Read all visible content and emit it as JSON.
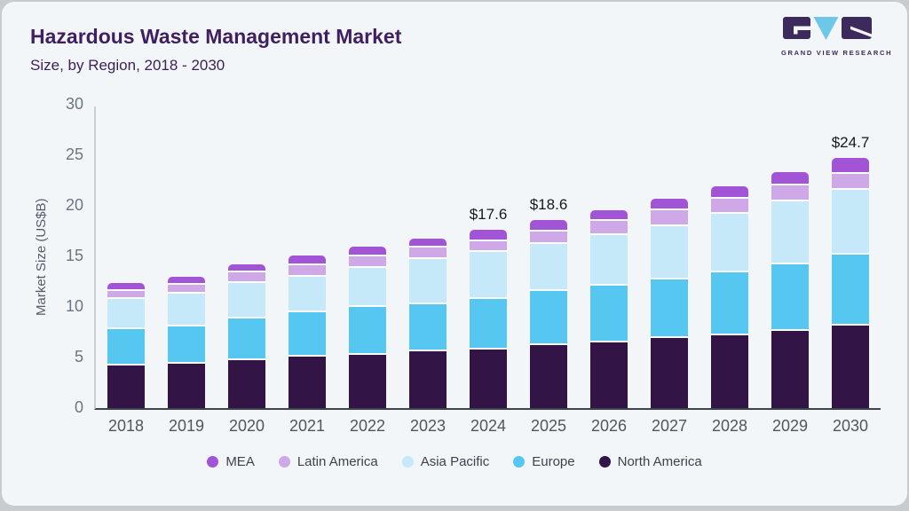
{
  "page": {
    "background": "#c7ccd0",
    "card_background": "#f2f6f9"
  },
  "header": {
    "title": "Hazardous Waste Management Market",
    "subtitle": "Size, by Region, 2018 - 2030",
    "title_color": "#401f61"
  },
  "logo": {
    "caption": "GRAND VIEW RESEARCH",
    "dark_color": "#3c2a5c",
    "accent_color": "#6ec6e9"
  },
  "chart_data": {
    "type": "bar",
    "stacked": true,
    "title": "Hazardous Waste Management Market Size, by Region, 2018 - 2030",
    "xlabel": "",
    "ylabel": "Market Size (US$B)",
    "ylim": [
      0,
      30
    ],
    "yticks": [
      0,
      5,
      10,
      15,
      20,
      25,
      30
    ],
    "grid": false,
    "legend_position": "bottom",
    "categories": [
      "2018",
      "2019",
      "2020",
      "2021",
      "2022",
      "2023",
      "2024",
      "2025",
      "2026",
      "2027",
      "2028",
      "2029",
      "2030"
    ],
    "series": [
      {
        "name": "North America",
        "color": "#321447",
        "values": [
          4.2,
          4.4,
          4.7,
          5.1,
          5.3,
          5.6,
          5.8,
          6.2,
          6.5,
          6.9,
          7.2,
          7.6,
          8.2
        ]
      },
      {
        "name": "Europe",
        "color": "#56c7f0",
        "values": [
          3.6,
          3.7,
          4.2,
          4.4,
          4.7,
          4.7,
          5.0,
          5.4,
          5.6,
          5.8,
          6.2,
          6.6,
          7.0
        ]
      },
      {
        "name": "Asia Pacific",
        "color": "#c5e9f9",
        "values": [
          3.0,
          3.2,
          3.5,
          3.5,
          3.9,
          4.4,
          4.6,
          4.6,
          5.0,
          5.3,
          5.8,
          6.2,
          6.4
        ]
      },
      {
        "name": "Latin America",
        "color": "#cfa8e8",
        "values": [
          0.8,
          0.9,
          1.0,
          1.1,
          1.1,
          1.2,
          1.1,
          1.3,
          1.4,
          1.6,
          1.5,
          1.6,
          1.6
        ]
      },
      {
        "name": "MEA",
        "color": "#a155d6",
        "values": [
          0.8,
          0.8,
          0.8,
          1.0,
          1.0,
          0.9,
          1.1,
          1.1,
          1.1,
          1.1,
          1.2,
          1.3,
          1.5
        ]
      }
    ],
    "bar_labels": {
      "2024": "$17.6",
      "2025": "$18.6",
      "2030": "$24.7"
    },
    "legend": [
      "MEA",
      "Latin America",
      "Asia Pacific",
      "Europe",
      "North America"
    ]
  }
}
